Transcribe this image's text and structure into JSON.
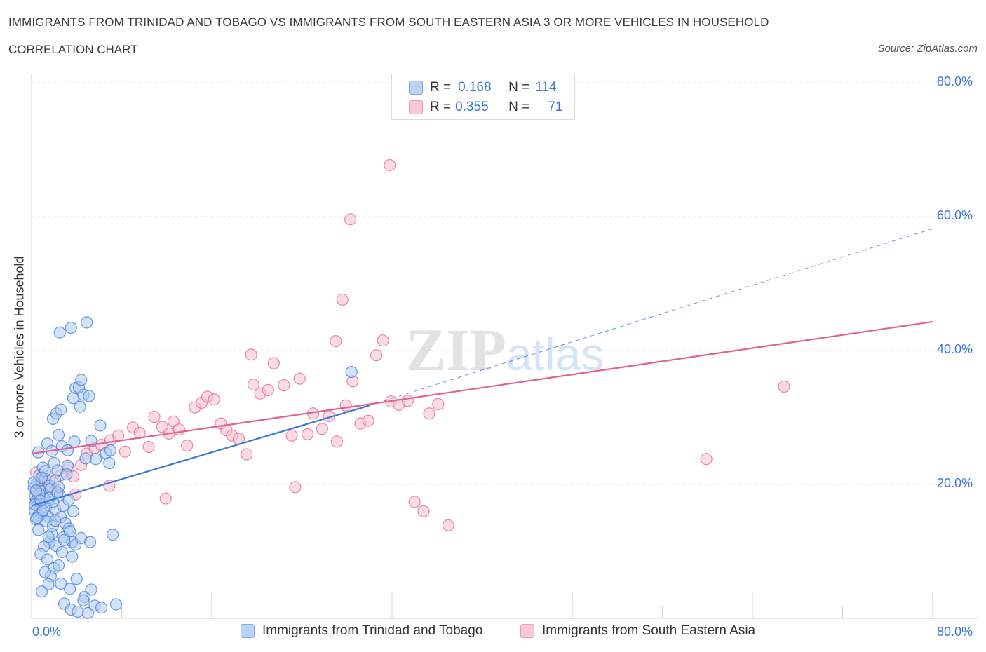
{
  "header": {
    "title": "IMMIGRANTS FROM TRINIDAD AND TOBAGO VS IMMIGRANTS FROM SOUTH EASTERN ASIA 3 OR MORE VEHICLES IN HOUSEHOLD",
    "subtitle": "CORRELATION CHART",
    "source": "Source: ZipAtlas.com"
  },
  "legend": {
    "r_label": "R =",
    "n_label": "N =",
    "series1": {
      "r": "0.168",
      "n": "114"
    },
    "series2": {
      "r": "0.355",
      "n": "71"
    }
  },
  "colors": {
    "blue": "#3b78d4",
    "blue_fill": "#aecbf2",
    "pink": "#e3618f",
    "pink_fill": "#f7bfd0"
  },
  "chart_data": {
    "type": "scatter",
    "title": "IMMIGRANTS FROM TRINIDAD AND TOBAGO VS IMMIGRANTS FROM SOUTH EASTERN ASIA 3 OR MORE VEHICLES IN HOUSEHOLD",
    "xlabel": "",
    "ylabel": "3 or more Vehicles in Household",
    "xlim": [
      0,
      80
    ],
    "ylim": [
      0,
      80
    ],
    "x_tick_labels": [
      "0.0%",
      "80.0%"
    ],
    "y_tick_labels": [
      "20.0%",
      "40.0%",
      "60.0%",
      "80.0%"
    ],
    "y_ticks": [
      20,
      40,
      60,
      80
    ],
    "grid": true,
    "legend_position": "top-center",
    "watermark": "ZIPatlas",
    "series": [
      {
        "name": "Immigrants from Trinidad and Tobago",
        "color": "blue",
        "r": 0.168,
        "n": 114,
        "trend": {
          "x0": 0,
          "y0": 16.8,
          "x1": 30,
          "y1": 31.8,
          "dash_to_x": 80,
          "dash_to_y": 58.2
        },
        "points": [
          [
            0.2,
            19.5
          ],
          [
            0.3,
            18.2
          ],
          [
            0.4,
            17.5
          ],
          [
            0.5,
            16.8
          ],
          [
            0.3,
            16.0
          ],
          [
            0.6,
            15.4
          ],
          [
            0.8,
            17.1
          ],
          [
            1.0,
            18.5
          ],
          [
            0.5,
            20.2
          ],
          [
            0.7,
            21.4
          ],
          [
            0.9,
            19.0
          ],
          [
            1.1,
            17.9
          ],
          [
            1.3,
            16.6
          ],
          [
            1.5,
            15.2
          ],
          [
            0.4,
            14.8
          ],
          [
            1.2,
            20.8
          ],
          [
            1.6,
            19.8
          ],
          [
            1.0,
            22.5
          ],
          [
            0.6,
            24.8
          ],
          [
            1.4,
            26.1
          ],
          [
            1.8,
            25.0
          ],
          [
            2.0,
            23.2
          ],
          [
            2.3,
            22.1
          ],
          [
            1.7,
            19.3
          ],
          [
            2.5,
            18.4
          ],
          [
            2.1,
            16.3
          ],
          [
            0.9,
            15.7
          ],
          [
            1.3,
            14.5
          ],
          [
            1.9,
            13.8
          ],
          [
            2.6,
            15.1
          ],
          [
            3.0,
            14.2
          ],
          [
            3.3,
            13.4
          ],
          [
            2.8,
            12.1
          ],
          [
            3.6,
            11.4
          ],
          [
            3.9,
            11.0
          ],
          [
            2.2,
            10.8
          ],
          [
            1.6,
            11.3
          ],
          [
            1.1,
            10.7
          ],
          [
            0.8,
            9.6
          ],
          [
            1.4,
            8.8
          ],
          [
            2.0,
            7.5
          ],
          [
            1.7,
            6.3
          ],
          [
            1.5,
            5.1
          ],
          [
            2.6,
            5.2
          ],
          [
            0.9,
            4.0
          ],
          [
            3.4,
            4.4
          ],
          [
            4.7,
            3.2
          ],
          [
            2.9,
            2.2
          ],
          [
            3.5,
            1.3
          ],
          [
            5.0,
            0.8
          ],
          [
            5.6,
            1.9
          ],
          [
            4.1,
            1.0
          ],
          [
            2.4,
            27.4
          ],
          [
            2.7,
            25.7
          ],
          [
            3.2,
            25.1
          ],
          [
            3.8,
            26.4
          ],
          [
            1.9,
            29.8
          ],
          [
            2.2,
            30.6
          ],
          [
            2.6,
            31.2
          ],
          [
            3.7,
            32.9
          ],
          [
            4.3,
            31.6
          ],
          [
            4.6,
            33.4
          ],
          [
            3.9,
            34.4
          ],
          [
            4.2,
            34.5
          ],
          [
            5.1,
            33.2
          ],
          [
            4.4,
            35.6
          ],
          [
            6.1,
            28.8
          ],
          [
            5.3,
            26.5
          ],
          [
            3.2,
            22.8
          ],
          [
            5.7,
            23.8
          ],
          [
            6.6,
            24.7
          ],
          [
            7.0,
            25.1
          ],
          [
            6.9,
            23.2
          ],
          [
            2.5,
            42.7
          ],
          [
            3.5,
            43.4
          ],
          [
            4.9,
            44.2
          ],
          [
            28.4,
            36.8
          ],
          [
            7.2,
            12.5
          ],
          [
            4.8,
            23.9
          ],
          [
            2.1,
            20.6
          ],
          [
            1.2,
            22.0
          ],
          [
            0.7,
            18.6
          ],
          [
            0.3,
            17.0
          ],
          [
            0.5,
            15.0
          ],
          [
            1.9,
            17.4
          ],
          [
            2.4,
            19.6
          ],
          [
            3.1,
            21.5
          ],
          [
            0.2,
            20.3
          ],
          [
            0.9,
            21.0
          ],
          [
            1.6,
            18.0
          ],
          [
            2.8,
            16.8
          ],
          [
            3.3,
            17.7
          ],
          [
            0.6,
            13.2
          ],
          [
            1.8,
            12.6
          ],
          [
            2.9,
            11.7
          ],
          [
            3.6,
            9.2
          ],
          [
            2.4,
            7.9
          ],
          [
            1.2,
            6.9
          ],
          [
            4.0,
            5.9
          ],
          [
            5.3,
            4.3
          ],
          [
            4.6,
            2.7
          ],
          [
            6.2,
            1.6
          ],
          [
            7.5,
            2.1
          ],
          [
            0.4,
            19.1
          ],
          [
            1.0,
            16.1
          ],
          [
            2.1,
            14.6
          ],
          [
            3.4,
            13.0
          ],
          [
            4.4,
            12.0
          ],
          [
            5.2,
            11.4
          ],
          [
            2.7,
            9.9
          ],
          [
            1.5,
            12.2
          ],
          [
            0.8,
            17.6
          ],
          [
            2.3,
            18.8
          ],
          [
            3.7,
            16.0
          ]
        ]
      },
      {
        "name": "Immigrants from South Eastern Asia",
        "color": "pink",
        "r": 0.355,
        "n": 71,
        "trend": {
          "x0": 0,
          "y0": 24.6,
          "x1": 80,
          "y1": 44.3
        },
        "points": [
          [
            0.4,
            21.8
          ],
          [
            0.8,
            20.5
          ],
          [
            1.2,
            19.6
          ],
          [
            1.6,
            20.9
          ],
          [
            0.6,
            18.3
          ],
          [
            2.1,
            19.1
          ],
          [
            2.6,
            21.4
          ],
          [
            3.3,
            22.5
          ],
          [
            3.7,
            21.2
          ],
          [
            4.4,
            22.9
          ],
          [
            4.9,
            24.6
          ],
          [
            5.6,
            25.4
          ],
          [
            6.2,
            25.9
          ],
          [
            7.0,
            26.6
          ],
          [
            7.7,
            27.3
          ],
          [
            8.3,
            24.9
          ],
          [
            9.0,
            28.5
          ],
          [
            9.6,
            27.7
          ],
          [
            10.4,
            25.6
          ],
          [
            10.9,
            30.1
          ],
          [
            11.6,
            28.6
          ],
          [
            12.2,
            27.6
          ],
          [
            12.6,
            29.4
          ],
          [
            13.1,
            28.2
          ],
          [
            13.8,
            25.8
          ],
          [
            14.5,
            31.5
          ],
          [
            15.1,
            32.2
          ],
          [
            15.6,
            33.1
          ],
          [
            16.2,
            32.7
          ],
          [
            16.8,
            29.1
          ],
          [
            17.3,
            28.1
          ],
          [
            17.8,
            27.3
          ],
          [
            18.4,
            26.8
          ],
          [
            19.1,
            24.5
          ],
          [
            19.7,
            34.9
          ],
          [
            20.3,
            33.6
          ],
          [
            21.0,
            34.1
          ],
          [
            21.5,
            38.1
          ],
          [
            22.4,
            34.8
          ],
          [
            23.1,
            27.3
          ],
          [
            23.8,
            35.8
          ],
          [
            24.5,
            27.5
          ],
          [
            25.0,
            30.6
          ],
          [
            25.8,
            28.3
          ],
          [
            26.4,
            30.2
          ],
          [
            27.1,
            26.4
          ],
          [
            27.9,
            31.8
          ],
          [
            28.5,
            35.4
          ],
          [
            29.2,
            29.1
          ],
          [
            29.9,
            29.5
          ],
          [
            30.6,
            39.3
          ],
          [
            31.2,
            41.5
          ],
          [
            31.9,
            32.4
          ],
          [
            32.6,
            31.9
          ],
          [
            33.4,
            32.5
          ],
          [
            34.0,
            17.4
          ],
          [
            34.8,
            16.0
          ],
          [
            35.3,
            30.6
          ],
          [
            36.1,
            32.0
          ],
          [
            37.0,
            13.9
          ],
          [
            19.5,
            39.4
          ],
          [
            27.0,
            41.4
          ],
          [
            27.6,
            47.6
          ],
          [
            28.3,
            59.6
          ],
          [
            31.8,
            67.7
          ],
          [
            23.4,
            19.6
          ],
          [
            6.9,
            19.8
          ],
          [
            11.9,
            17.9
          ],
          [
            59.9,
            23.8
          ],
          [
            66.8,
            34.6
          ],
          [
            3.9,
            18.5
          ]
        ]
      }
    ]
  },
  "bottom_legend": {
    "item1": "Immigrants from Trinidad and Tobago",
    "item2": "Immigrants from South Eastern Asia"
  }
}
